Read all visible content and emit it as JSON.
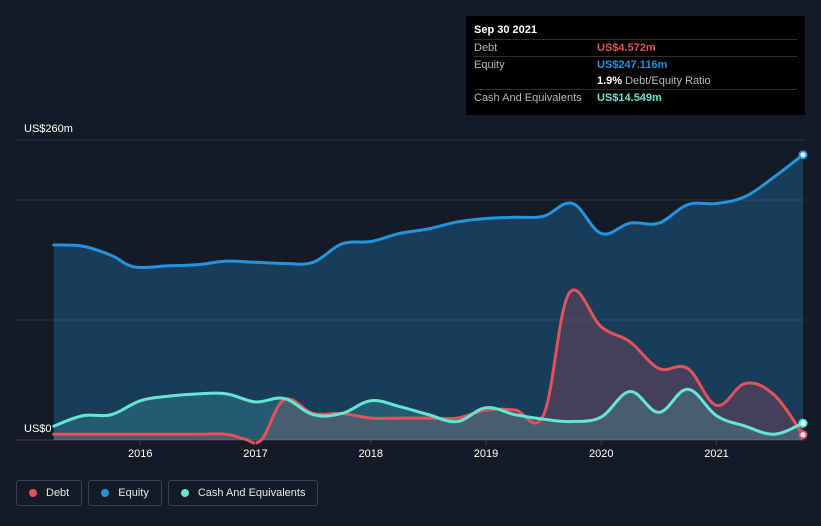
{
  "tooltip": {
    "date": "Sep 30 2021",
    "debt_label": "Debt",
    "debt_value": "US$4.572m",
    "equity_label": "Equity",
    "equity_value": "US$247.116m",
    "ratio_value": "1.9%",
    "ratio_label": "Debt/Equity Ratio",
    "cash_label": "Cash And Equivalents",
    "cash_value": "US$14.549m"
  },
  "legend": {
    "debt": "Debt",
    "equity": "Equity",
    "cash": "Cash And Equivalents"
  },
  "colors": {
    "debt": "#e0535c",
    "equity": "#2394df",
    "cash": "#63e6d6",
    "background": "#151b26"
  },
  "chart_data": {
    "type": "area",
    "y_top_label": "US$260m",
    "y_bottom_label": "US$0",
    "ylim": [
      0,
      260
    ],
    "xlim": [
      2015.2,
      2021.75
    ],
    "x_ticks": [
      "2016",
      "2017",
      "2018",
      "2019",
      "2020",
      "2021"
    ],
    "grid": true,
    "legend_position": "bottom-left",
    "series": [
      {
        "name": "Equity",
        "points": [
          [
            2015.25,
            169
          ],
          [
            2015.5,
            168
          ],
          [
            2015.75,
            160
          ],
          [
            2015.95,
            150
          ],
          [
            2016.25,
            151
          ],
          [
            2016.5,
            152
          ],
          [
            2016.75,
            155
          ],
          [
            2017.0,
            154
          ],
          [
            2017.25,
            153
          ],
          [
            2017.5,
            154
          ],
          [
            2017.75,
            170
          ],
          [
            2018.0,
            172
          ],
          [
            2018.25,
            179
          ],
          [
            2018.5,
            183
          ],
          [
            2018.75,
            189
          ],
          [
            2019.0,
            192
          ],
          [
            2019.25,
            193
          ],
          [
            2019.5,
            194
          ],
          [
            2019.75,
            205
          ],
          [
            2020.0,
            179
          ],
          [
            2020.25,
            188
          ],
          [
            2020.5,
            188
          ],
          [
            2020.75,
            204
          ],
          [
            2021.0,
            205
          ],
          [
            2021.25,
            211
          ],
          [
            2021.5,
            228
          ],
          [
            2021.75,
            247.116
          ]
        ]
      },
      {
        "name": "Debt",
        "points": [
          [
            2015.25,
            5
          ],
          [
            2015.5,
            5
          ],
          [
            2015.75,
            5
          ],
          [
            2016.0,
            5
          ],
          [
            2016.25,
            5
          ],
          [
            2016.5,
            5
          ],
          [
            2016.75,
            5
          ],
          [
            2016.9,
            1
          ],
          [
            2017.05,
            0
          ],
          [
            2017.25,
            35
          ],
          [
            2017.5,
            23
          ],
          [
            2017.75,
            23
          ],
          [
            2018.0,
            19
          ],
          [
            2018.25,
            19
          ],
          [
            2018.5,
            19
          ],
          [
            2018.75,
            19
          ],
          [
            2019.0,
            26
          ],
          [
            2019.25,
            26
          ],
          [
            2019.5,
            22
          ],
          [
            2019.72,
            127
          ],
          [
            2020.0,
            98
          ],
          [
            2020.25,
            85
          ],
          [
            2020.5,
            62
          ],
          [
            2020.75,
            62
          ],
          [
            2021.0,
            30
          ],
          [
            2021.25,
            49
          ],
          [
            2021.5,
            39
          ],
          [
            2021.75,
            4.572
          ]
        ]
      },
      {
        "name": "Cash And Equivalents",
        "points": [
          [
            2015.25,
            12
          ],
          [
            2015.5,
            21
          ],
          [
            2015.75,
            22
          ],
          [
            2016.0,
            34
          ],
          [
            2016.25,
            38
          ],
          [
            2016.5,
            40
          ],
          [
            2016.75,
            40
          ],
          [
            2017.0,
            33
          ],
          [
            2017.25,
            36
          ],
          [
            2017.5,
            22
          ],
          [
            2017.75,
            23
          ],
          [
            2018.0,
            34
          ],
          [
            2018.25,
            29
          ],
          [
            2018.5,
            22
          ],
          [
            2018.75,
            16
          ],
          [
            2019.0,
            28
          ],
          [
            2019.25,
            22
          ],
          [
            2019.5,
            18
          ],
          [
            2019.75,
            16
          ],
          [
            2020.0,
            20
          ],
          [
            2020.25,
            42
          ],
          [
            2020.5,
            24
          ],
          [
            2020.75,
            44
          ],
          [
            2021.0,
            21
          ],
          [
            2021.25,
            12
          ],
          [
            2021.5,
            5
          ],
          [
            2021.75,
            14.549
          ]
        ]
      }
    ]
  }
}
